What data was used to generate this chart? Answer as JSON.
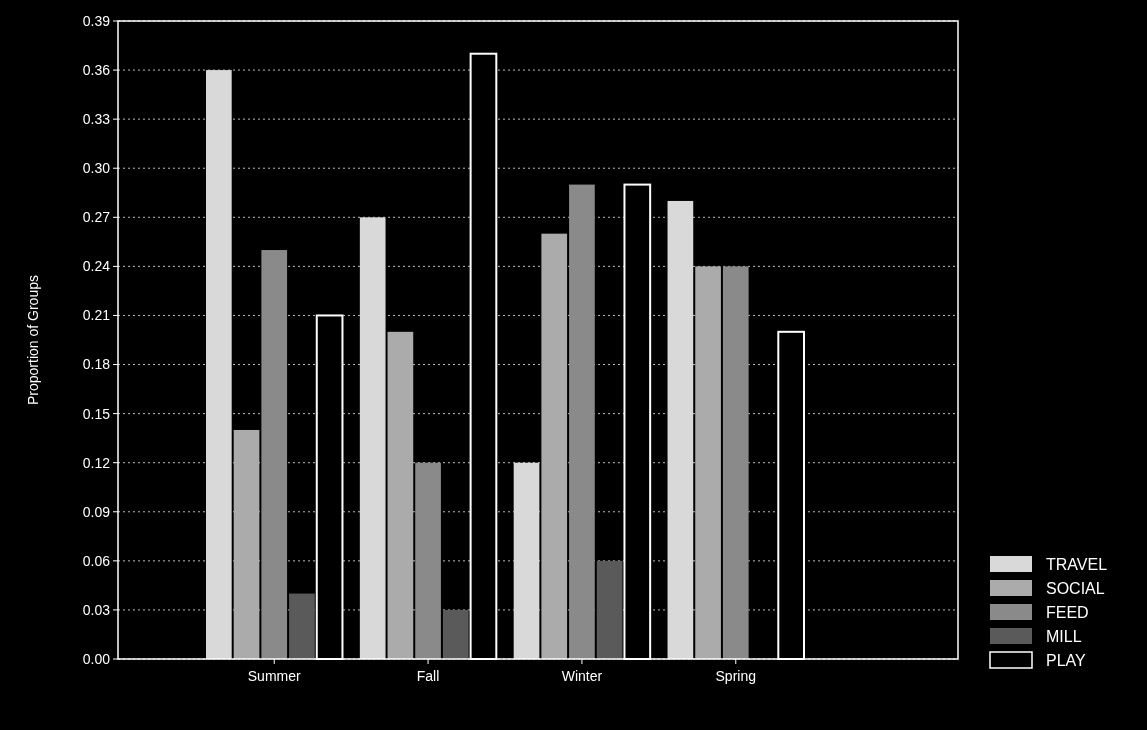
{
  "chart_data": {
    "type": "bar",
    "ylabel": "Proportion of Groups",
    "categories": [
      "Summer",
      "Fall",
      "Winter",
      "Spring"
    ],
    "series": [
      {
        "name": "TRAVEL",
        "color": "#d9d9d9",
        "values": [
          0.36,
          0.27,
          0.12,
          0.28
        ]
      },
      {
        "name": "SOCIAL",
        "color": "#ababab",
        "values": [
          0.14,
          0.2,
          0.26,
          0.24
        ]
      },
      {
        "name": "FEED",
        "color": "#8a8a8a",
        "values": [
          0.25,
          0.12,
          0.29,
          0.24
        ]
      },
      {
        "name": "MILL",
        "color": "#5a5a5a",
        "values": [
          0.04,
          0.03,
          0.06,
          0
        ]
      },
      {
        "name": "PLAY",
        "color": "#000000",
        "values": [
          0.21,
          0.37,
          0.29,
          0.2
        ]
      }
    ],
    "ylim": [
      0,
      0.39
    ],
    "yticks": [
      {
        "value": 0,
        "label": "0.00"
      },
      {
        "value": 0.03,
        "label": "0.03"
      },
      {
        "value": 0.06,
        "label": "0.06"
      },
      {
        "value": 0.09,
        "label": "0.09"
      },
      {
        "value": 0.12,
        "label": "0.12"
      },
      {
        "value": 0.15,
        "label": "0.15"
      },
      {
        "value": 0.18,
        "label": "0.18"
      },
      {
        "value": 0.21,
        "label": "0.21"
      },
      {
        "value": 0.24,
        "label": "0.24"
      },
      {
        "value": 0.27,
        "label": "0.27"
      },
      {
        "value": 0.3,
        "label": "0.30"
      },
      {
        "value": 0.33,
        "label": "0.33"
      },
      {
        "value": 0.36,
        "label": "0.36"
      },
      {
        "value": 0.39,
        "label": "0.39"
      }
    ],
    "grid": "y",
    "legend": "bottom right"
  }
}
